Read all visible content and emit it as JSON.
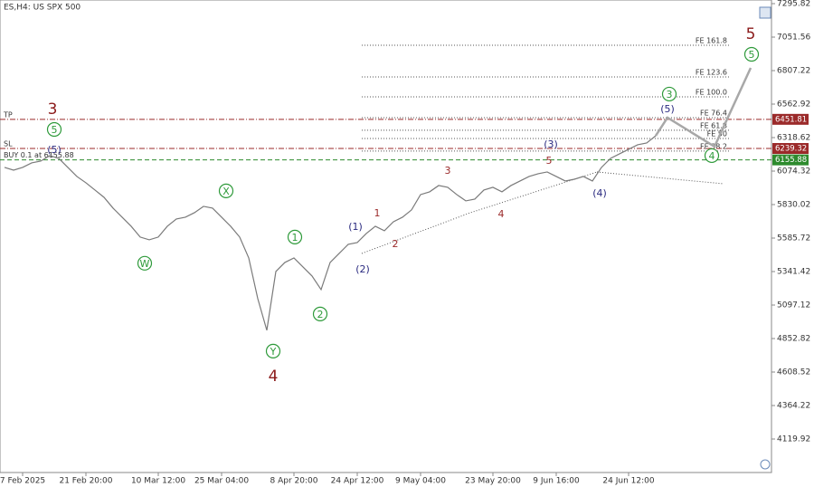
{
  "chart_data": {
    "type": "line",
    "title": "ES,H4: US SPX 500",
    "categories": [
      null,
      null,
      "7 Feb 2025",
      null,
      null,
      null,
      null,
      null,
      null,
      "21 Feb 20:00",
      null,
      null,
      null,
      null,
      null,
      null,
      null,
      "10 Mar 12:00",
      null,
      null,
      null,
      null,
      null,
      null,
      "25 Mar 04:00",
      null,
      null,
      null,
      null,
      null,
      null,
      null,
      "8 Apr 20:00",
      null,
      null,
      null,
      null,
      null,
      null,
      "24 Apr 12:00",
      null,
      null,
      null,
      null,
      null,
      null,
      "9 May 04:00",
      null,
      null,
      null,
      null,
      null,
      null,
      null,
      "23 May 20:00",
      null,
      null,
      null,
      null,
      null,
      null,
      "9 Jun 16:00",
      null,
      null,
      null,
      null,
      null,
      null,
      null,
      "24 Jun 12:00",
      null,
      null,
      null
    ],
    "series": [
      {
        "color": "#7a7a7a",
        "values": [
          6101,
          6081,
          6101,
          6134,
          6147,
          6187,
          6167,
          6101,
          6035,
          5989,
          5936,
          5883,
          5804,
          5738,
          5672,
          5593,
          5573,
          5593,
          5672,
          5725,
          5738,
          5771,
          5817,
          5804,
          5738,
          5672,
          5593,
          5441,
          5144,
          4913,
          5342,
          5408,
          5441,
          5375,
          5309,
          5210,
          5408,
          5474,
          5540,
          5553,
          5619,
          5672,
          5639,
          5705,
          5738,
          5791,
          5903,
          5923,
          5969,
          5956,
          5903,
          5857,
          5870,
          5936,
          5956,
          5923,
          5969,
          6002,
          6035,
          6055,
          6068,
          6035,
          6002,
          6015,
          6035,
          6002,
          6101,
          6167,
          6200,
          6233,
          6266,
          6279,
          6332
        ]
      }
    ],
    "projection": {
      "color": "#a8a8a8",
      "x": [
        72,
        73.3,
        78.5,
        82.5
      ],
      "values": [
        6332,
        6464,
        6253,
        6827
      ]
    },
    "xlim": [
      -0.5,
      84.3
    ],
    "ylim": [
      3875.62,
      7322.22
    ],
    "yticks": [
      7295.82,
      7051.56,
      6807.22,
      6562.92,
      6318.62,
      6074.32,
      5830.02,
      5585.72,
      5341.42,
      5097.12,
      4852.82,
      4608.52,
      4364.22,
      4119.92
    ],
    "levels": [
      {
        "label": "TP",
        "value": 6451.81,
        "color": "#9b2a2a"
      },
      {
        "label": "SL",
        "value": 6239.32,
        "color": "#9b2a2a"
      },
      {
        "label": "BUY 0.1 at 6155.88",
        "value": 6155.88,
        "color": "#2e8b2e"
      }
    ],
    "fib_levels": [
      {
        "label": "FE 161.8",
        "value": 6992
      },
      {
        "label": "FE 123.6",
        "value": 6761
      },
      {
        "label": "FE 100.0",
        "value": 6616
      },
      {
        "label": "FE 76.4",
        "value": 6464
      },
      {
        "label": "FE 61.8",
        "value": 6372
      },
      {
        "label": "FE 50",
        "value": 6312
      },
      {
        "label": "FE 38.2",
        "value": 6220
      }
    ],
    "annotations": [
      {
        "text": "3",
        "x": 5.3,
        "y": 6530,
        "color": "#8b1a1a",
        "style": "major"
      },
      {
        "text": "4",
        "x": 29.7,
        "y": 4583,
        "color": "#8b1a1a",
        "style": "major"
      },
      {
        "text": "5",
        "x": 82.5,
        "y": 7078,
        "color": "#8b1a1a",
        "style": "major"
      },
      {
        "text": "5",
        "x": 5.5,
        "y": 6378,
        "color": "#2e9a3a",
        "style": "circle"
      },
      {
        "text": "X",
        "x": 24.5,
        "y": 5930,
        "color": "#2e9a3a",
        "style": "circle"
      },
      {
        "text": "W",
        "x": 15.5,
        "y": 5402,
        "color": "#2e9a3a",
        "style": "circle"
      },
      {
        "text": "1",
        "x": 32.1,
        "y": 5593,
        "color": "#2e9a3a",
        "style": "circle"
      },
      {
        "text": "2",
        "x": 34.9,
        "y": 5032,
        "color": "#2e9a3a",
        "style": "circle"
      },
      {
        "text": "Y",
        "x": 29.7,
        "y": 4761,
        "color": "#2e9a3a",
        "style": "circle"
      },
      {
        "text": "3",
        "x": 73.5,
        "y": 6636,
        "color": "#2e9a3a",
        "style": "circle"
      },
      {
        "text": "4",
        "x": 78.2,
        "y": 6187,
        "color": "#2e9a3a",
        "style": "circle"
      },
      {
        "text": "5",
        "x": 82.6,
        "y": 6926,
        "color": "#2e9a3a",
        "style": "circle"
      },
      {
        "text": "(5)",
        "x": 5.5,
        "y": 6233,
        "color": "#2a2a80",
        "style": "minor"
      },
      {
        "text": "(1)",
        "x": 38.8,
        "y": 5672,
        "color": "#2a2a80",
        "style": "minor"
      },
      {
        "text": "(2)",
        "x": 39.6,
        "y": 5362,
        "color": "#2a2a80",
        "style": "minor"
      },
      {
        "text": "(3)",
        "x": 60.4,
        "y": 6273,
        "color": "#2a2a80",
        "style": "minor"
      },
      {
        "text": "(4)",
        "x": 65.8,
        "y": 5916,
        "color": "#2a2a80",
        "style": "minor"
      },
      {
        "text": "(5)",
        "x": 73.3,
        "y": 6530,
        "color": "#2a2a80",
        "style": "minor"
      },
      {
        "text": "1",
        "x": 41.2,
        "y": 5771,
        "color": "#9b2a2a",
        "style": "small"
      },
      {
        "text": "2",
        "x": 43.2,
        "y": 5547,
        "color": "#9b2a2a",
        "style": "small"
      },
      {
        "text": "3",
        "x": 49,
        "y": 6081,
        "color": "#9b2a2a",
        "style": "small"
      },
      {
        "text": "4",
        "x": 54.9,
        "y": 5764,
        "color": "#9b2a2a",
        "style": "small"
      },
      {
        "text": "5",
        "x": 60.2,
        "y": 6154,
        "color": "#9b2a2a",
        "style": "small"
      }
    ]
  }
}
